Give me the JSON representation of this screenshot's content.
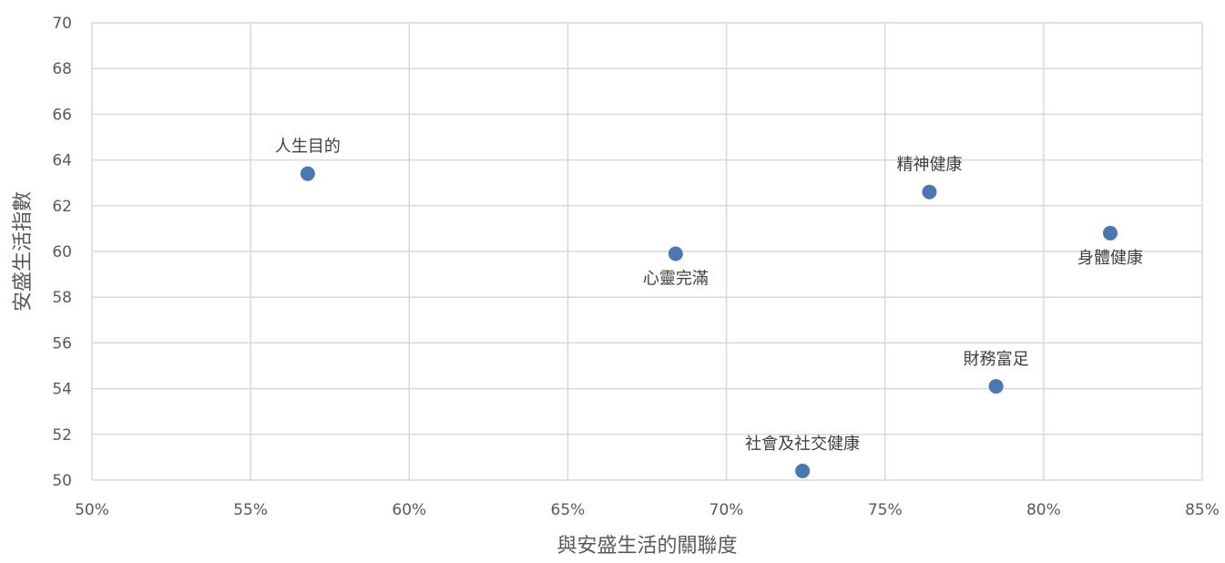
{
  "chart_data": {
    "type": "scatter",
    "title": "",
    "xlabel": "與安盛生活的關聯度",
    "ylabel": "安盛生活指數",
    "xlim": [
      0.5,
      0.85
    ],
    "ylim": [
      50,
      70
    ],
    "x_ticks": [
      0.5,
      0.55,
      0.6,
      0.65,
      0.7,
      0.75,
      0.8,
      0.85
    ],
    "x_tick_labels": [
      "50%",
      "55%",
      "60%",
      "65%",
      "70%",
      "75%",
      "80%",
      "85%"
    ],
    "y_ticks": [
      50,
      52,
      54,
      56,
      58,
      60,
      62,
      64,
      66,
      68,
      70
    ],
    "y_tick_labels": [
      "50",
      "52",
      "54",
      "56",
      "58",
      "60",
      "62",
      "64",
      "66",
      "68",
      "70"
    ],
    "grid": true,
    "legend": "none",
    "marker_color": "#4a78b5",
    "points": [
      {
        "label": "人生目的",
        "x": 0.568,
        "y": 63.4,
        "label_position": "above"
      },
      {
        "label": "心靈完滿",
        "x": 0.684,
        "y": 59.9,
        "label_position": "below"
      },
      {
        "label": "精神健康",
        "x": 0.764,
        "y": 62.6,
        "label_position": "above"
      },
      {
        "label": "身體健康",
        "x": 0.821,
        "y": 60.8,
        "label_position": "below"
      },
      {
        "label": "財務富足",
        "x": 0.785,
        "y": 54.1,
        "label_position": "above"
      },
      {
        "label": "社會及社交健康",
        "x": 0.724,
        "y": 50.4,
        "label_position": "above"
      }
    ]
  }
}
